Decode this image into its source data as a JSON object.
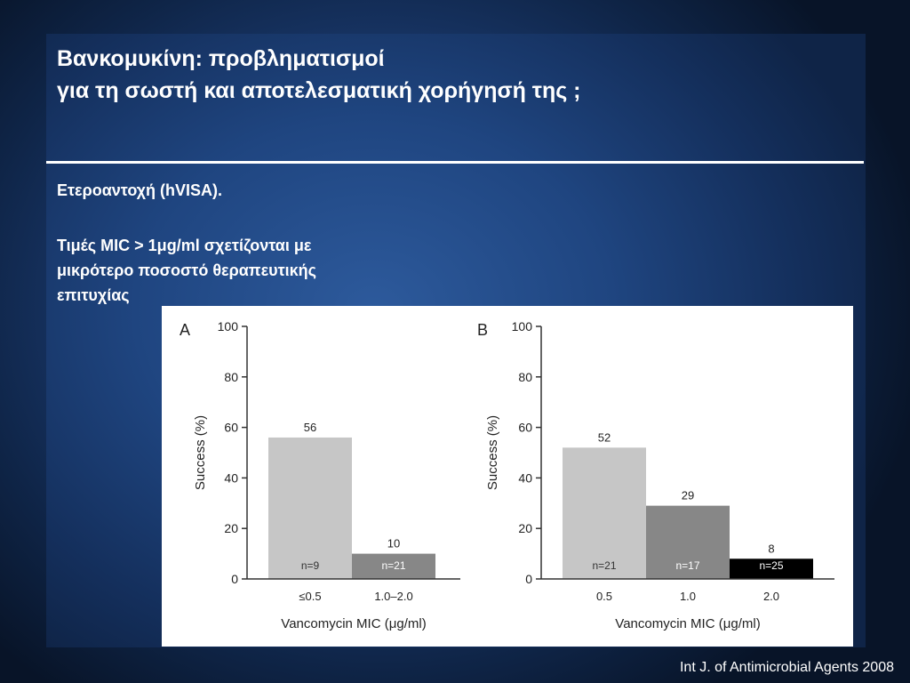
{
  "slide": {
    "title_line1": "Βανκομυκίνη:  προβληματισμοί",
    "title_line2": "για τη σωστή και αποτελεσματική χορήγησή της ;",
    "point1": "Ετεροαντοχή (hVISA).",
    "point2_line1": "Τιμές MIC > 1μg/ml σχετίζονται με",
    "point2_line2": "μικρότερο ποσοστό θεραπευτικής",
    "point2_line3": "επιτυχίας",
    "citation": "Int J. of Antimicrobial Agents 2008"
  },
  "chart_data": [
    {
      "type": "bar",
      "panel_label": "A",
      "categories": [
        "≤0.5",
        "1.0–2.0"
      ],
      "values": [
        56,
        10
      ],
      "data_labels": [
        "56",
        "10"
      ],
      "n_labels": [
        "n=9",
        "n=21"
      ],
      "bar_colors": [
        "#c6c6c6",
        "#878787"
      ],
      "n_label_colors": [
        "#333333",
        "#ffffff"
      ],
      "xlabel": "Vancomycin MIC (μg/ml)",
      "ylabel": "Success (%)",
      "ylim": [
        0,
        100
      ],
      "yticks": [
        0,
        20,
        40,
        60,
        80,
        100
      ],
      "grid": false
    },
    {
      "type": "bar",
      "panel_label": "B",
      "categories": [
        "0.5",
        "1.0",
        "2.0"
      ],
      "values": [
        52,
        29,
        8
      ],
      "data_labels": [
        "52",
        "29",
        "8"
      ],
      "n_labels": [
        "n=21",
        "n=17",
        "n=25"
      ],
      "bar_colors": [
        "#c6c6c6",
        "#878787",
        "#000000"
      ],
      "n_label_colors": [
        "#333333",
        "#ffffff",
        "#ffffff"
      ],
      "xlabel": "Vancomycin MIC (μg/ml)",
      "ylabel": "Success (%)",
      "ylim": [
        0,
        100
      ],
      "yticks": [
        0,
        20,
        40,
        60,
        80,
        100
      ],
      "grid": false
    }
  ]
}
